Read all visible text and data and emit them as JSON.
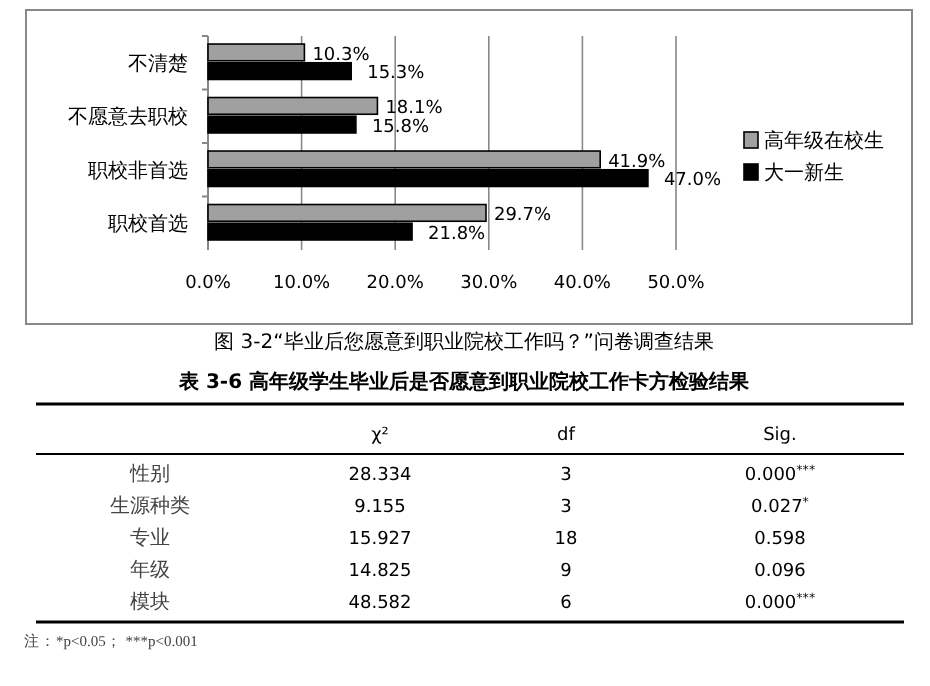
{
  "chart_data": [
    {
      "type": "bar",
      "orientation": "horizontal",
      "categories": [
        "不清楚",
        "不愿意去职校",
        "职校非首选",
        "职校首选"
      ],
      "series": [
        {
          "name": "高年级在校生",
          "color": "#a0a0a0",
          "values": [
            10.3,
            18.1,
            41.9,
            29.7
          ],
          "value_labels": [
            "10.3%",
            "18.1%",
            "41.9%",
            "29.7%"
          ]
        },
        {
          "name": "大一新生",
          "color": "#000000",
          "values": [
            15.3,
            15.8,
            47.0,
            21.8
          ],
          "value_labels": [
            "15.3%",
            "15.8%",
            "47.0%",
            "21.8%"
          ]
        }
      ],
      "xlim": [
        0,
        50
      ],
      "xticks": [
        {
          "value": 0,
          "label": "0.0%"
        },
        {
          "value": 10,
          "label": "10.0%"
        },
        {
          "value": 20,
          "label": "20.0%"
        },
        {
          "value": 30,
          "label": "30.0%"
        },
        {
          "value": 40,
          "label": "40.0%"
        },
        {
          "value": 50,
          "label": "50.0%"
        }
      ],
      "grid": "x",
      "legend": "right",
      "annotations": [
        "图 3-2“毕业后您愿意到职业院校工作吗？”问卷调查结果"
      ]
    },
    {
      "type": "other",
      "title": "表 3-6 高年级学生毕业后是否愿意到职业院校工作卡方检验结果",
      "categories": [
        "性别",
        "生源种类",
        "专业",
        "年级",
        "模块"
      ],
      "series": [
        {
          "name": "χ²",
          "values": [
            28.334,
            9.155,
            15.927,
            14.825,
            48.582
          ],
          "value_labels": [
            "28.334",
            "9.155",
            "15.927",
            "14.825",
            "48.582"
          ]
        },
        {
          "name": "df",
          "values": [
            3,
            3,
            18,
            9,
            6
          ],
          "value_labels": [
            "3",
            "3",
            "18",
            "9",
            "6"
          ]
        },
        {
          "name": "Sig.",
          "values": [
            0.0,
            0.027,
            0.598,
            0.096,
            0.0
          ],
          "value_labels": [
            "0.000$^{***}$",
            "0.027$^{*}$",
            "0.598",
            "0.096",
            "0.000$^{***}$"
          ]
        }
      ],
      "annotations": [
        "注：*p<0.05；  ***p<0.001"
      ]
    }
  ]
}
